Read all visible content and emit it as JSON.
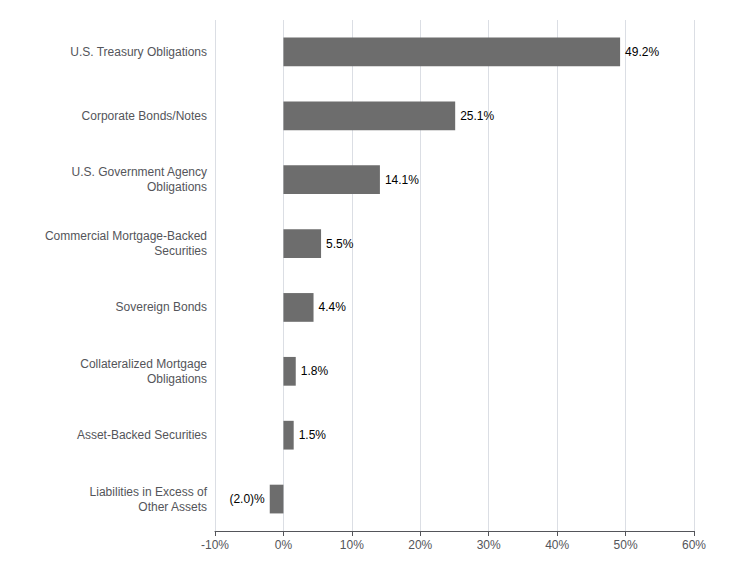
{
  "chart_data": {
    "type": "bar",
    "orientation": "horizontal",
    "categories": [
      "U.S. Treasury Obligations",
      "Corporate Bonds/Notes",
      "U.S. Government Agency\nObligations",
      "Commercial Mortgage-Backed\nSecurities",
      "Sovereign Bonds",
      "Collateralized Mortgage\nObligations",
      "Asset-Backed Securities",
      "Liabilities in Excess of\nOther Assets"
    ],
    "values": [
      49.2,
      25.1,
      14.1,
      5.5,
      4.4,
      1.8,
      1.5,
      -2.0
    ],
    "value_labels": [
      "49.2%",
      "25.1%",
      "14.1%",
      "5.5%",
      "4.4%",
      "1.8%",
      "1.5%",
      "(2.0)%"
    ],
    "data_labels": true,
    "color": "#6d6d6d",
    "xlim": [
      -10,
      60
    ],
    "xticks": [
      {
        "value": -10,
        "label": "-10%"
      },
      {
        "value": 0,
        "label": "0%"
      },
      {
        "value": 10,
        "label": "10%"
      },
      {
        "value": 20,
        "label": "20%"
      },
      {
        "value": 30,
        "label": "30%"
      },
      {
        "value": 40,
        "label": "40%"
      },
      {
        "value": 50,
        "label": "50%"
      },
      {
        "value": 60,
        "label": "60%"
      }
    ],
    "grid": true
  }
}
